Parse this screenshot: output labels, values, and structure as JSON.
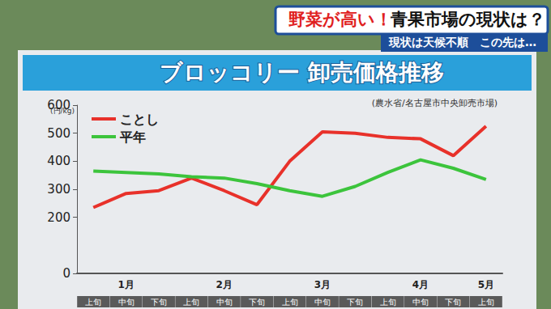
{
  "chart_data": {
    "type": "line",
    "headline": [
      "野菜が高い！",
      "青果市場の現状は？"
    ],
    "subtitle": "現状は天候不順　この先は…",
    "title": "ブロッコリー 卸売価格推移",
    "y_label": "(円/kg)",
    "source": "(農水省/名古屋市中央卸売市場)",
    "categories": [
      "上旬",
      "中旬",
      "下旬",
      "上旬",
      "中旬",
      "下旬",
      "上旬",
      "中旬",
      "下旬",
      "上旬",
      "中旬",
      "下旬",
      "上旬"
    ],
    "groups": [
      {
        "label": "1月",
        "count": 3
      },
      {
        "label": "2月",
        "count": 3
      },
      {
        "label": "3月",
        "count": 3
      },
      {
        "label": "4月",
        "count": 3
      },
      {
        "label": "5月",
        "count": 1
      }
    ],
    "series": [
      {
        "name": "ことし",
        "color": "#e8312a",
        "values": [
          235,
          285,
          295,
          340,
          295,
          245,
          400,
          505,
          500,
          485,
          480,
          420,
          525
        ]
      },
      {
        "name": "平年",
        "color": "#3cc43c",
        "values": [
          365,
          360,
          355,
          345,
          340,
          320,
          295,
          275,
          310,
          360,
          405,
          375,
          335
        ]
      }
    ],
    "ylim": [
      0,
      600
    ],
    "yticks": [
      0,
      200,
      300,
      400,
      500,
      600
    ],
    "grid": false,
    "legend": "top-left"
  }
}
